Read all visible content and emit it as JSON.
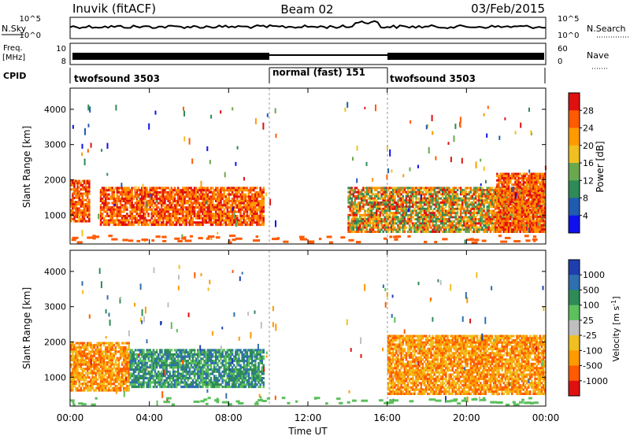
{
  "header": {
    "station": "Inuvik (fitACF)",
    "beam": "Beam 02",
    "date": "03/Feb/2015"
  },
  "strip_labels": {
    "nsky": "N.Sky",
    "nsearch": "N.Search",
    "freq_top": "Freq.",
    "freq_unit": "[MHz]",
    "nave": "Nave",
    "cpid": "CPID",
    "nsky_ticks": [
      "10^5",
      "10^0"
    ],
    "nsearch_ticks": [
      "10^5",
      "10^0"
    ],
    "freq_ticks": [
      "10",
      "8"
    ],
    "nave_ticks": [
      "60",
      "0"
    ]
  },
  "cpid_segments": [
    {
      "label": "twofsound 3503",
      "start_h": 0,
      "end_h": 10
    },
    {
      "label": "normal (fast) 151",
      "start_h": 10,
      "end_h": 16
    },
    {
      "label": "twofsound 3503",
      "start_h": 16,
      "end_h": 24
    }
  ],
  "colors": {
    "power_scale": [
      "#1010ee",
      "#1f5cb0",
      "#2e8b57",
      "#6aa84f",
      "#f0c020",
      "#ff9a00",
      "#ff5a00",
      "#e01010"
    ],
    "velocity_scale": [
      "#1f3fb0",
      "#2e6fb0",
      "#2e8b57",
      "#5cc05c",
      "#bfbfbf",
      "#f0c020",
      "#ff9a00",
      "#ff5a00",
      "#e01010"
    ]
  },
  "chart_data": [
    {
      "type": "heatmap",
      "xlabel": "Time UT",
      "ylabel": "Slant Range [km]",
      "x_ticks": [
        "00:00",
        "04:00",
        "08:00",
        "12:00",
        "16:00",
        "20:00",
        "00:00"
      ],
      "y_ticks": [
        1000,
        2000,
        3000,
        4000
      ],
      "xlim": [
        0,
        24
      ],
      "ylim": [
        180,
        4600
      ],
      "colorbar": {
        "label": "Power [dB]",
        "ticks": [
          4,
          8,
          12,
          16,
          20,
          24,
          28
        ],
        "range": [
          0,
          32
        ]
      },
      "regions": [
        {
          "t0": 0,
          "t1": 1,
          "r0": 800,
          "r1": 2000,
          "level": "high"
        },
        {
          "t0": 1.5,
          "t1": 9.8,
          "r0": 700,
          "r1": 1800,
          "level": "high"
        },
        {
          "t0": 14,
          "t1": 24,
          "r0": 500,
          "r1": 1800,
          "level": "mixed"
        },
        {
          "t0": 21.5,
          "t1": 24,
          "r0": 500,
          "r1": 2200,
          "level": "high"
        }
      ]
    },
    {
      "type": "heatmap",
      "xlabel": "Time UT",
      "ylabel": "Slant Range [km]",
      "x_ticks": [
        "00:00",
        "04:00",
        "08:00",
        "12:00",
        "16:00",
        "20:00",
        "00:00"
      ],
      "y_ticks": [
        1000,
        2000,
        3000,
        4000
      ],
      "xlim": [
        0,
        24
      ],
      "ylim": [
        180,
        4600
      ],
      "colorbar": {
        "label": "Velocity [m s^-1]",
        "ticks": [
          "1000",
          "500",
          "100",
          "25",
          "-25",
          "-100",
          "-500",
          "-1000"
        ]
      },
      "regions": [
        {
          "t0": 0,
          "t1": 3,
          "r0": 600,
          "r1": 2000,
          "level": "negative"
        },
        {
          "t0": 3,
          "t1": 9.8,
          "r0": 700,
          "r1": 1800,
          "level": "positive"
        },
        {
          "t0": 16,
          "t1": 24,
          "r0": 500,
          "r1": 2200,
          "level": "negative"
        }
      ]
    }
  ]
}
